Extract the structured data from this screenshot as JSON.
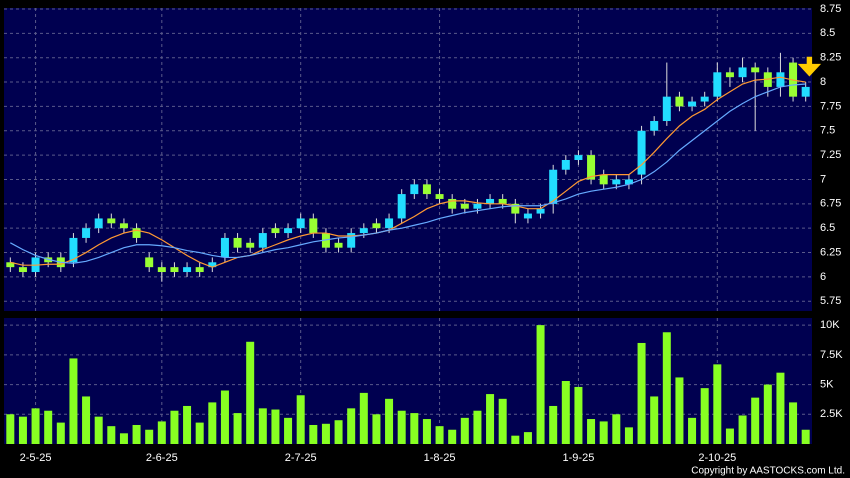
{
  "chart_data": {
    "type": "candlestick",
    "categories": [
      null,
      null,
      "2-5-25",
      null,
      null,
      null,
      null,
      null,
      null,
      null,
      null,
      null,
      "2-6-25",
      null,
      null,
      null,
      null,
      null,
      null,
      null,
      null,
      null,
      null,
      "2-7-25",
      null,
      null,
      null,
      null,
      null,
      null,
      null,
      null,
      null,
      null,
      "1-8-25",
      null,
      null,
      null,
      null,
      null,
      null,
      null,
      null,
      null,
      null,
      "1-9-25",
      null,
      null,
      null,
      null,
      null,
      null,
      null,
      null,
      null,
      null,
      "2-10-25",
      null,
      null,
      null,
      null,
      null,
      null,
      null
    ],
    "open": [
      6.15,
      6.1,
      6.05,
      6.2,
      6.2,
      6.15,
      6.4,
      6.5,
      6.6,
      6.55,
      6.5,
      6.2,
      6.1,
      6.1,
      6.05,
      6.1,
      6.1,
      6.2,
      6.4,
      6.35,
      6.3,
      6.5,
      6.45,
      6.5,
      6.6,
      6.45,
      6.35,
      6.3,
      6.45,
      6.55,
      6.5,
      6.6,
      6.85,
      6.95,
      6.85,
      6.8,
      6.75,
      6.7,
      6.75,
      6.8,
      6.75,
      6.6,
      6.65,
      6.75,
      7.1,
      7.2,
      7.25,
      7.05,
      6.95,
      6.95,
      7.05,
      7.5,
      7.6,
      7.85,
      7.75,
      7.8,
      7.85,
      8.1,
      8.05,
      8.15,
      8.1,
      7.95,
      8.2,
      7.85
    ],
    "high": [
      6.2,
      6.15,
      6.25,
      6.25,
      6.25,
      6.45,
      6.55,
      6.65,
      6.65,
      6.6,
      6.55,
      6.25,
      6.15,
      6.15,
      6.15,
      6.15,
      6.2,
      6.45,
      6.45,
      6.4,
      6.5,
      6.55,
      6.55,
      6.65,
      6.65,
      6.5,
      6.4,
      6.5,
      6.55,
      6.6,
      6.65,
      6.9,
      7.0,
      7.0,
      6.9,
      6.85,
      6.8,
      6.8,
      6.85,
      6.85,
      6.8,
      6.7,
      6.75,
      7.15,
      7.25,
      7.3,
      7.3,
      7.1,
      7.05,
      7.05,
      7.55,
      7.65,
      8.2,
      7.9,
      7.85,
      7.9,
      8.2,
      8.15,
      8.25,
      8.2,
      8.15,
      8.3,
      8.25,
      8.0
    ],
    "low": [
      6.05,
      6.0,
      6.0,
      6.1,
      6.05,
      6.1,
      6.35,
      6.45,
      6.5,
      6.45,
      6.35,
      6.05,
      5.95,
      6.0,
      6.0,
      6.0,
      6.05,
      6.15,
      6.25,
      6.25,
      6.25,
      6.4,
      6.4,
      6.45,
      6.4,
      6.25,
      6.25,
      6.25,
      6.4,
      6.45,
      6.45,
      6.55,
      6.8,
      6.8,
      6.75,
      6.65,
      6.65,
      6.65,
      6.7,
      6.7,
      6.55,
      6.55,
      6.6,
      6.65,
      7.05,
      7.15,
      6.95,
      6.9,
      6.9,
      6.9,
      6.95,
      7.45,
      7.55,
      7.7,
      7.7,
      7.75,
      7.8,
      7.95,
      8.0,
      7.5,
      7.85,
      7.85,
      7.8,
      7.8
    ],
    "close": [
      6.1,
      6.05,
      6.2,
      6.15,
      6.1,
      6.4,
      6.5,
      6.6,
      6.55,
      6.5,
      6.4,
      6.1,
      6.05,
      6.05,
      6.1,
      6.05,
      6.15,
      6.4,
      6.3,
      6.3,
      6.45,
      6.45,
      6.5,
      6.6,
      6.45,
      6.3,
      6.3,
      6.45,
      6.5,
      6.5,
      6.6,
      6.85,
      6.95,
      6.85,
      6.8,
      6.7,
      6.7,
      6.75,
      6.8,
      6.75,
      6.65,
      6.65,
      6.7,
      7.1,
      7.2,
      7.25,
      7.0,
      6.95,
      7.0,
      7.0,
      7.5,
      7.6,
      7.85,
      7.75,
      7.8,
      7.85,
      8.1,
      8.05,
      8.15,
      8.1,
      7.95,
      8.1,
      7.85,
      7.95
    ],
    "up_color": "#22ddff",
    "down_color": "#99ff33",
    "series": [
      {
        "color": "#ff9933",
        "values": [
          6.15,
          6.12,
          6.12,
          6.13,
          6.13,
          6.18,
          6.25,
          6.33,
          6.4,
          6.45,
          6.48,
          6.45,
          6.38,
          6.3,
          6.22,
          6.15,
          6.1,
          6.15,
          6.2,
          6.22,
          6.28,
          6.33,
          6.38,
          6.42,
          6.45,
          6.45,
          6.42,
          6.42,
          6.43,
          6.45,
          6.48,
          6.55,
          6.62,
          6.7,
          6.75,
          6.78,
          6.78,
          6.76,
          6.75,
          6.75,
          6.73,
          6.7,
          6.7,
          6.78,
          6.88,
          6.98,
          7.03,
          7.05,
          7.05,
          7.05,
          7.15,
          7.28,
          7.42,
          7.55,
          7.65,
          7.72,
          7.82,
          7.9,
          7.98,
          8.02,
          8.03,
          8.05,
          8.02,
          8.0
        ]
      },
      {
        "color": "#66aaff",
        "values": [
          6.35,
          6.28,
          6.22,
          6.18,
          6.15,
          6.14,
          6.16,
          6.2,
          6.25,
          6.3,
          6.33,
          6.33,
          6.32,
          6.3,
          6.27,
          6.25,
          6.22,
          6.2,
          6.2,
          6.22,
          6.25,
          6.28,
          6.3,
          6.33,
          6.36,
          6.38,
          6.4,
          6.41,
          6.43,
          6.45,
          6.48,
          6.5,
          6.53,
          6.56,
          6.6,
          6.63,
          6.66,
          6.68,
          6.7,
          6.72,
          6.73,
          6.73,
          6.73,
          6.76,
          6.8,
          6.85,
          6.88,
          6.9,
          6.92,
          6.95,
          7.0,
          7.08,
          7.18,
          7.3,
          7.4,
          7.5,
          7.6,
          7.7,
          7.78,
          7.85,
          7.9,
          7.95,
          7.97,
          7.98
        ]
      }
    ],
    "ylim": [
      5.65,
      8.76
    ],
    "yticks": [
      5.75,
      6,
      6.25,
      6.5,
      6.75,
      7,
      7.25,
      7.5,
      7.75,
      8,
      8.25,
      8.5,
      8.75
    ],
    "volume": [
      2500,
      2300,
      3000,
      2800,
      1800,
      7200,
      4000,
      2300,
      1500,
      900,
      1600,
      1200,
      1900,
      2800,
      3200,
      1800,
      3500,
      4500,
      2600,
      8600,
      3000,
      2900,
      2200,
      4100,
      1600,
      1700,
      2000,
      3000,
      4300,
      2500,
      3800,
      2800,
      2600,
      2100,
      1500,
      1200,
      2200,
      2800,
      4200,
      3800,
      700,
      1000,
      10000,
      3200,
      5300,
      4800,
      2100,
      1900,
      2500,
      1400,
      8500,
      4000,
      9400,
      5600,
      2200,
      4700,
      6700,
      1300,
      2400,
      3900,
      5000,
      6000,
      3500,
      1200
    ],
    "volume_color": "#88ff22",
    "volume_ylim": [
      0,
      10600
    ],
    "volume_yticks": [
      {
        "value": 2500,
        "label": "2.5K"
      },
      {
        "value": 5000,
        "label": "5K"
      },
      {
        "value": 7500,
        "label": "7.5K"
      },
      {
        "value": 10000,
        "label": "10K"
      }
    ],
    "grid": true,
    "copyright": "Copyright by AASTOCKS.com Ltd."
  }
}
